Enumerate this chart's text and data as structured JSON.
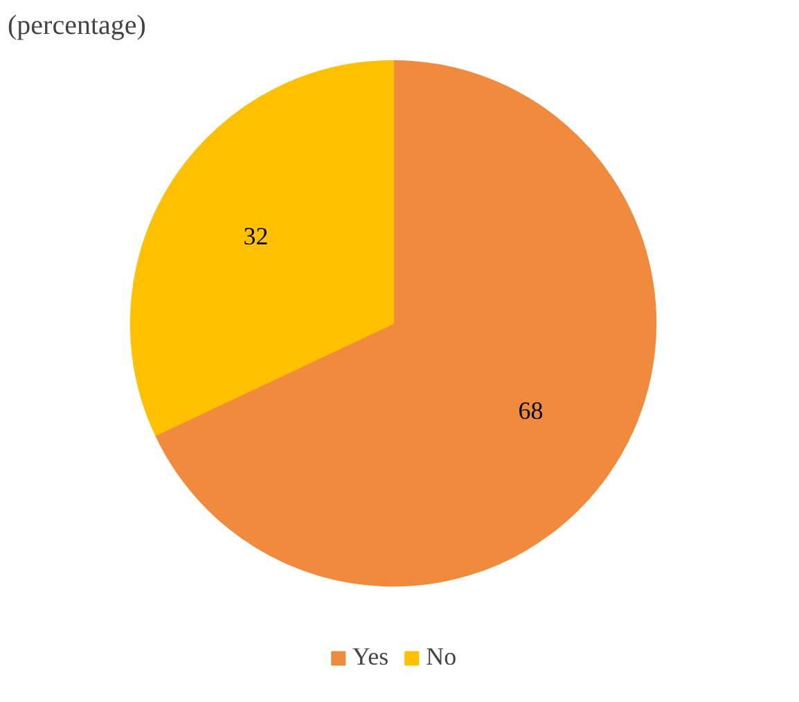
{
  "chart_data": {
    "type": "pie",
    "title": "(percentage)",
    "categories": [
      "Yes",
      "No"
    ],
    "values": [
      68,
      32
    ],
    "colors": [
      "#f08a3c",
      "#ffc000"
    ],
    "data_labels": true,
    "legend": "bottom"
  }
}
